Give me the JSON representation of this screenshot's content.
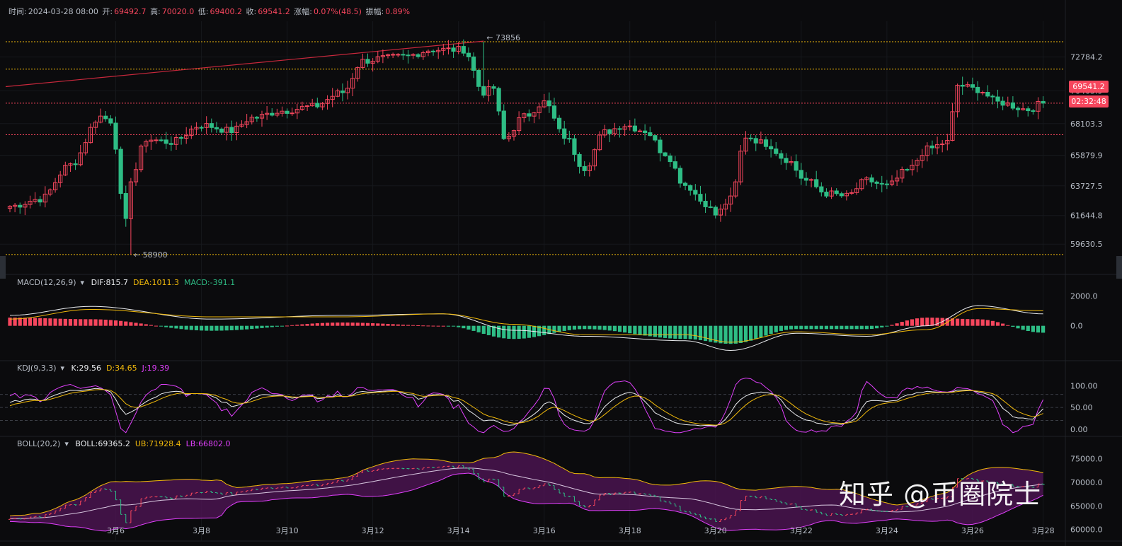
{
  "header": {
    "time_label": "时间:",
    "time_value": "2024-03-28 08:00",
    "open_label": "开:",
    "open_value": "69492.7",
    "high_label": "高:",
    "high_value": "70020.0",
    "low_label": "低:",
    "low_value": "69400.2",
    "close_label": "收:",
    "close_value": "69541.2",
    "change_label": "涨幅:",
    "change_value": "0.07%(48.5)",
    "amp_label": "振幅:",
    "amp_value": "0.89%"
  },
  "price_tags": {
    "last_price": "69541.2",
    "countdown": "02:32:48"
  },
  "annotations": {
    "high_mark": "73856",
    "low_mark": "58900"
  },
  "indicators": {
    "macd": {
      "name": "MACD(12,26,9)",
      "dif_label": "DIF:",
      "dif": "815.7",
      "dea_label": "DEA:",
      "dea": "1011.3",
      "macd_label": "MACD:",
      "macd": "-391.1"
    },
    "kdj": {
      "name": "KDJ(9,3,3)",
      "k_label": "K:",
      "k": "29.56",
      "d_label": "D:",
      "d": "34.65",
      "j_label": "J:",
      "j": "19.39"
    },
    "boll": {
      "name": "BOLL(20,2)",
      "mid_label": "BOLL:",
      "mid": "69365.2",
      "ub_label": "UB:",
      "ub": "71928.4",
      "lb_label": "LB:",
      "lb": "66802.0"
    }
  },
  "watermark": "知乎 @币圈院士",
  "colors": {
    "up": "#f6465d",
    "down": "#2ebd85",
    "background": "#0b0b0d",
    "accent_yellow": "#f0b90b",
    "accent_pink": "#e040fb"
  },
  "chart_data": {
    "type": "candlestick",
    "interval_hours": 4,
    "x_tick_labels": [
      "3月6",
      "3月8",
      "3月10",
      "3月12",
      "3月14",
      "3月16",
      "3月18",
      "3月20",
      "3月22",
      "3月24",
      "3月26",
      "3月28"
    ],
    "price_axis_ticks": [
      "72784.2",
      "70405.9",
      "68103.3",
      "65879.9",
      "63727.5",
      "61644.8",
      "59630.5"
    ],
    "price_range": [
      58300,
      74900
    ],
    "macd_axis_ticks": [
      "2000.0",
      "0.0"
    ],
    "macd_range": [
      -2100,
      2400
    ],
    "kdj_axis_ticks": [
      "100.00",
      "50.00",
      "0.00"
    ],
    "kdj_range": [
      -10,
      125
    ],
    "boll_axis_ticks": [
      "75000.0",
      "70000.0",
      "65000.0",
      "60000.0"
    ],
    "boll_range": [
      58300,
      77500
    ],
    "close_anchors": [
      [
        0,
        62300
      ],
      [
        6,
        62800
      ],
      [
        12,
        65200
      ],
      [
        18,
        68600
      ],
      [
        20,
        68300
      ],
      [
        23,
        61200
      ],
      [
        24,
        64200
      ],
      [
        27,
        67000
      ],
      [
        32,
        66800
      ],
      [
        38,
        68000
      ],
      [
        44,
        67600
      ],
      [
        48,
        68500
      ],
      [
        54,
        69000
      ],
      [
        60,
        69300
      ],
      [
        66,
        70300
      ],
      [
        70,
        72500
      ],
      [
        74,
        72700
      ],
      [
        78,
        72800
      ],
      [
        84,
        73300
      ],
      [
        90,
        73300
      ],
      [
        94,
        70300
      ],
      [
        96,
        70600
      ],
      [
        98,
        67000
      ],
      [
        102,
        68600
      ],
      [
        106,
        69600
      ],
      [
        110,
        67200
      ],
      [
        114,
        65000
      ],
      [
        118,
        67500
      ],
      [
        122,
        68000
      ],
      [
        126,
        67600
      ],
      [
        130,
        66000
      ],
      [
        134,
        63800
      ],
      [
        138,
        62500
      ],
      [
        140,
        61700
      ],
      [
        143,
        62800
      ],
      [
        146,
        67200
      ],
      [
        150,
        66700
      ],
      [
        154,
        65600
      ],
      [
        158,
        64100
      ],
      [
        162,
        63200
      ],
      [
        166,
        63000
      ],
      [
        170,
        64100
      ],
      [
        174,
        63700
      ],
      [
        178,
        64800
      ],
      [
        182,
        66300
      ],
      [
        186,
        66800
      ],
      [
        188,
        70800
      ],
      [
        192,
        70500
      ],
      [
        196,
        69600
      ],
      [
        202,
        69100
      ],
      [
        205,
        69541
      ]
    ],
    "dif_anchors": [
      [
        0,
        700
      ],
      [
        16,
        1300
      ],
      [
        40,
        450
      ],
      [
        66,
        700
      ],
      [
        86,
        800
      ],
      [
        100,
        -300
      ],
      [
        114,
        -700
      ],
      [
        134,
        -1000
      ],
      [
        143,
        -1650
      ],
      [
        156,
        -500
      ],
      [
        170,
        -700
      ],
      [
        182,
        0
      ],
      [
        192,
        1350
      ],
      [
        205,
        800
      ]
    ],
    "dea_anchors": [
      [
        0,
        450
      ],
      [
        16,
        1100
      ],
      [
        40,
        600
      ],
      [
        66,
        600
      ],
      [
        86,
        800
      ],
      [
        100,
        100
      ],
      [
        114,
        -600
      ],
      [
        134,
        -600
      ],
      [
        143,
        -1100
      ],
      [
        156,
        -400
      ],
      [
        170,
        -600
      ],
      [
        182,
        -250
      ],
      [
        192,
        1150
      ],
      [
        205,
        1010
      ]
    ],
    "boll": {
      "mid": "69365.2",
      "ub": "71928.4",
      "lb": "66802.0"
    }
  }
}
